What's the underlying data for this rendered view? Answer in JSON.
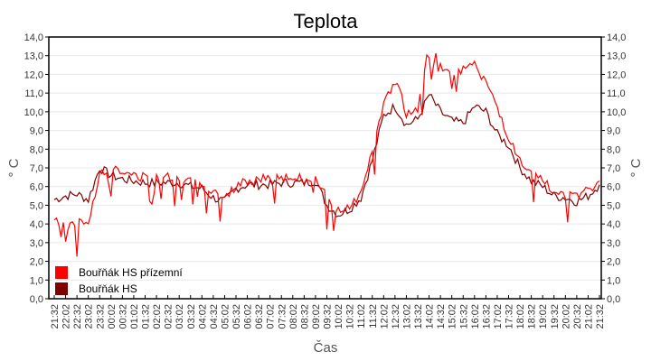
{
  "chart_data": {
    "type": "line",
    "title": "Teplota",
    "xlabel": "Čas",
    "ylabel": "° C",
    "ylabel_right": "° C",
    "ylim": [
      0,
      14
    ],
    "yticks": [
      "0,0",
      "1,0",
      "2,0",
      "3,0",
      "4,0",
      "5,0",
      "6,0",
      "7,0",
      "8,0",
      "9,0",
      "10,0",
      "11,0",
      "12,0",
      "13,0",
      "14,0"
    ],
    "grid": true,
    "legend_position": "bottom-left inside plot",
    "x": [
      "21:32",
      "22:02",
      "22:32",
      "23:02",
      "23:32",
      "00:02",
      "00:32",
      "01:02",
      "01:32",
      "02:02",
      "02:32",
      "03:02",
      "03:32",
      "04:02",
      "04:32",
      "05:02",
      "05:32",
      "06:02",
      "06:32",
      "07:02",
      "07:32",
      "08:02",
      "08:32",
      "09:02",
      "09:32",
      "10:02",
      "10:32",
      "11:02",
      "11:32",
      "12:02",
      "12:32",
      "13:02",
      "13:32",
      "14:02",
      "14:32",
      "15:02",
      "15:32",
      "16:02",
      "16:32",
      "17:02",
      "17:32",
      "18:02",
      "18:32",
      "19:02",
      "19:32",
      "20:02",
      "20:32",
      "21:02",
      "21:32"
    ],
    "series": [
      {
        "name": "Bouřňák HS přízemní",
        "color": "#ff0000",
        "values": [
          4.1,
          4.2,
          4.1,
          4.0,
          6.8,
          7.0,
          6.7,
          6.6,
          6.5,
          6.4,
          6.5,
          6.5,
          6.4,
          6.2,
          5.6,
          5.5,
          6.0,
          6.3,
          6.4,
          6.4,
          6.5,
          6.5,
          6.4,
          6.6,
          5.4,
          4.7,
          5.0,
          5.6,
          8.0,
          10.3,
          11.7,
          10.0,
          10.3,
          13.5,
          12.5,
          12.0,
          12.2,
          12.5,
          11.6,
          10.2,
          8.6,
          7.3,
          6.6,
          6.3,
          5.7,
          5.6,
          5.4,
          5.8,
          6.3
        ]
      },
      {
        "name": "Bouřňák HS",
        "color": "#800000",
        "values": [
          5.3,
          5.5,
          5.6,
          5.3,
          7.0,
          6.6,
          6.4,
          6.3,
          6.2,
          6.2,
          6.2,
          6.2,
          6.0,
          5.9,
          5.4,
          5.2,
          5.9,
          6.1,
          6.1,
          6.1,
          6.2,
          6.2,
          6.2,
          6.3,
          5.0,
          4.5,
          4.8,
          5.4,
          7.4,
          9.8,
          10.3,
          9.3,
          9.6,
          10.9,
          10.0,
          9.5,
          9.4,
          10.3,
          10.0,
          8.8,
          8.2,
          7.0,
          6.3,
          6.0,
          5.5,
          5.4,
          5.2,
          5.5,
          6.1
        ]
      }
    ]
  },
  "legend": {
    "items": [
      {
        "label": "Bouřňák HS přízemní",
        "color": "#ff0000"
      },
      {
        "label": "Bouřňák HS",
        "color": "#800000"
      }
    ]
  }
}
